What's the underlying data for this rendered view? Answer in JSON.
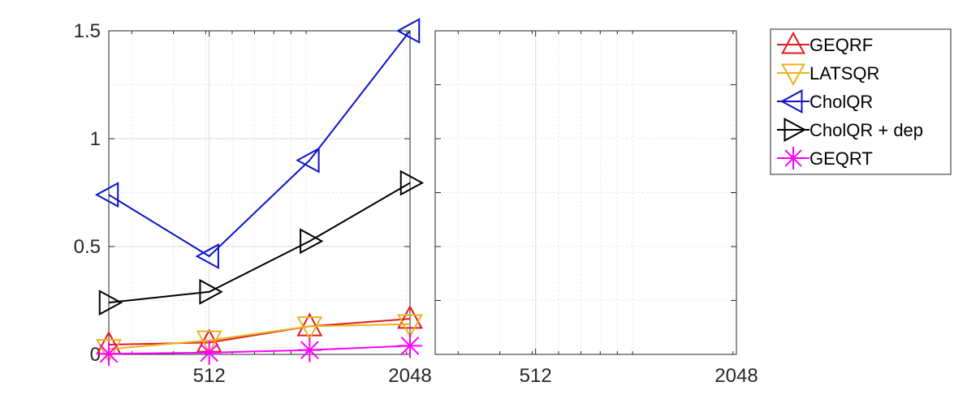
{
  "chart_data": [
    {
      "type": "line",
      "xscale": "log2",
      "x": [
        256,
        512,
        1024,
        2048
      ],
      "xlim": [
        256,
        2048
      ],
      "ylim": [
        0,
        1.5
      ],
      "xticks": [
        512,
        2048
      ],
      "xtick_labels": [
        "512",
        "2048"
      ],
      "yticks": [
        0,
        0.5,
        1,
        1.5
      ],
      "ytick_labels": [
        "0",
        "0.5",
        "1",
        "1.5"
      ],
      "grid": true,
      "legend_position": "outside-right",
      "series": [
        {
          "name": "GEQRF",
          "color": "#e01b1b",
          "marker": "triangle-up",
          "values": [
            0.045,
            0.055,
            0.13,
            0.165
          ]
        },
        {
          "name": "LATSQR",
          "color": "#edb120",
          "marker": "triangle-down",
          "values": [
            0.025,
            0.065,
            0.13,
            0.14
          ]
        },
        {
          "name": "CholQR",
          "color": "#0a14c8",
          "marker": "triangle-left",
          "values": [
            0.74,
            0.455,
            0.9,
            1.5
          ]
        },
        {
          "name": "CholQR + dep",
          "color": "#000000",
          "marker": "triangle-right",
          "values": [
            0.24,
            0.29,
            0.525,
            0.795
          ]
        },
        {
          "name": "GEQRT",
          "color": "#ff00ff",
          "marker": "asterisk",
          "values": [
            0.003,
            0.008,
            0.02,
            0.04
          ]
        }
      ]
    },
    {
      "type": "line",
      "xscale": "log2",
      "xlim": [
        256,
        2048
      ],
      "ylim": [
        0,
        1.5
      ],
      "xticks": [
        512,
        2048
      ],
      "xtick_labels": [
        "512",
        "2048"
      ],
      "grid": true,
      "series": []
    }
  ]
}
